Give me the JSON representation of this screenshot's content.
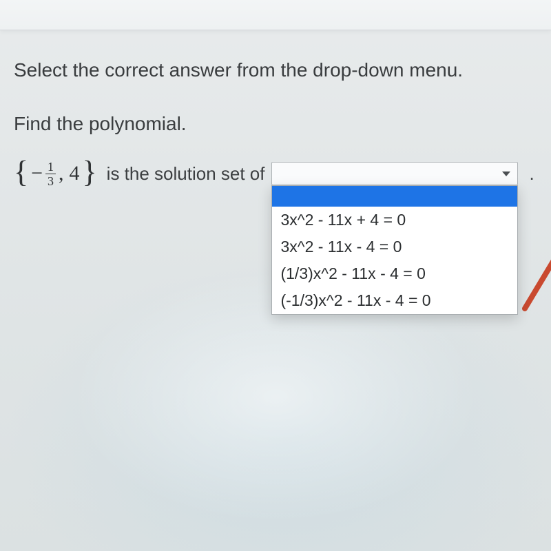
{
  "instruction": "Select the correct answer from the drop-down menu.",
  "prompt": "Find the polynomial.",
  "set": {
    "minus": "−",
    "frac_num": "1",
    "frac_den": "3",
    "comma": ",",
    "second": "4"
  },
  "phrase": "is the solution set of",
  "period": ".",
  "dropdown": {
    "selected": "",
    "options": [
      "",
      "3x^2 - 11x + 4 = 0",
      "3x^2 - 11x - 4 = 0",
      "(1/3)x^2 - 11x - 4 = 0",
      "(-1/3)x^2 - 11x - 4 = 0"
    ],
    "highlight_index": 0
  },
  "colors": {
    "highlight_bg": "#1e74e6",
    "text": "#3b3e40",
    "border": "#aeb3b6",
    "panel_bg": "#ffffff",
    "pointer": "#c9492f"
  }
}
